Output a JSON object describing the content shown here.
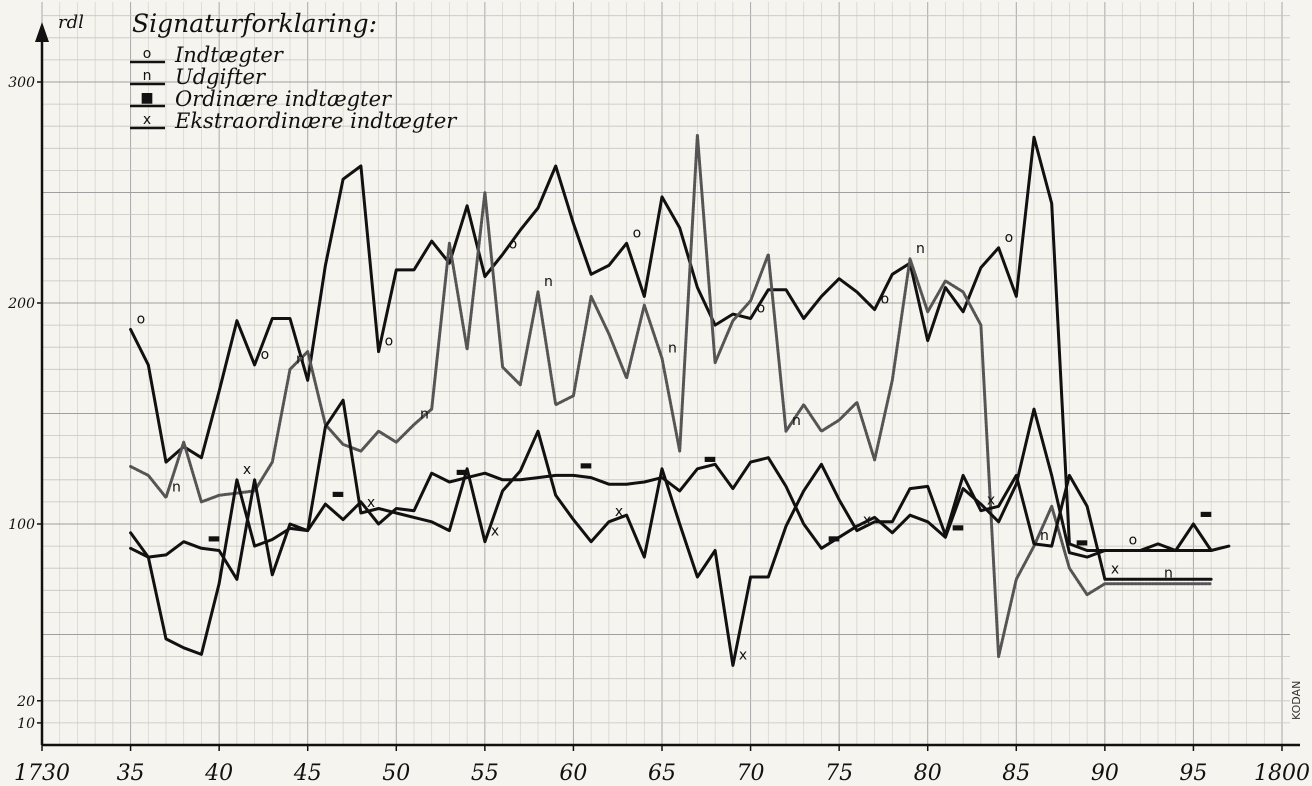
{
  "chart_data": {
    "type": "line",
    "ylabel": "rdl",
    "legend_title": "Signaturforklaring:",
    "legend_placement": "top-left",
    "watermark": "KODAN",
    "xlim": [
      1730,
      1800
    ],
    "ylim": [
      0,
      300
    ],
    "grid": true,
    "x_ticks": [
      {
        "value": 1730,
        "label": "1730"
      },
      {
        "value": 1735,
        "label": "35"
      },
      {
        "value": 1740,
        "label": "40"
      },
      {
        "value": 1745,
        "label": "45"
      },
      {
        "value": 1750,
        "label": "50"
      },
      {
        "value": 1755,
        "label": "55"
      },
      {
        "value": 1760,
        "label": "60"
      },
      {
        "value": 1765,
        "label": "65"
      },
      {
        "value": 1770,
        "label": "70"
      },
      {
        "value": 1775,
        "label": "75"
      },
      {
        "value": 1780,
        "label": "80"
      },
      {
        "value": 1785,
        "label": "85"
      },
      {
        "value": 1790,
        "label": "90"
      },
      {
        "value": 1795,
        "label": "95"
      },
      {
        "value": 1800,
        "label": "1800"
      }
    ],
    "y_ticks": [
      {
        "value": 10,
        "label": "10"
      },
      {
        "value": 20,
        "label": "20"
      },
      {
        "value": 100,
        "label": "100"
      },
      {
        "value": 200,
        "label": "200"
      },
      {
        "value": 300,
        "label": "300"
      }
    ],
    "series": [
      {
        "name": "Indtægter",
        "marker": "o",
        "color": "#111111",
        "style": "solid",
        "x": [
          1735,
          1736,
          1737,
          1738,
          1739,
          1740,
          1741,
          1742,
          1743,
          1744,
          1745,
          1746,
          1747,
          1748,
          1749,
          1750,
          1751,
          1752,
          1753,
          1754,
          1755,
          1756,
          1757,
          1758,
          1759,
          1760,
          1761,
          1762,
          1763,
          1764,
          1765,
          1766,
          1767,
          1768,
          1769,
          1770,
          1771,
          1772,
          1773,
          1774,
          1775,
          1776,
          1777,
          1778,
          1779,
          1780,
          1781,
          1782,
          1783,
          1784,
          1785,
          1786,
          1787,
          1788,
          1789,
          1790,
          1791,
          1792,
          1793,
          1794,
          1795,
          1796
        ],
        "values": [
          188,
          172,
          128,
          135,
          130,
          160,
          192,
          172,
          193,
          193,
          165,
          217,
          256,
          262,
          178,
          215,
          215,
          228,
          218,
          244,
          212,
          222,
          233,
          243,
          262,
          236,
          213,
          217,
          227,
          203,
          248,
          234,
          207,
          190,
          195,
          193,
          206,
          206,
          193,
          203,
          211,
          205,
          197,
          213,
          218,
          183,
          207,
          196,
          216,
          225,
          203,
          275,
          245,
          91,
          88,
          88,
          88,
          88,
          88,
          88,
          88,
          88
        ]
      },
      {
        "name": "Udgifter",
        "marker": "n",
        "color": "#555555",
        "style": "dashed",
        "x": [
          1735,
          1736,
          1737,
          1738,
          1739,
          1740,
          1741,
          1742,
          1743,
          1744,
          1745,
          1746,
          1747,
          1748,
          1749,
          1750,
          1751,
          1752,
          1753,
          1754,
          1755,
          1756,
          1757,
          1758,
          1759,
          1760,
          1761,
          1762,
          1763,
          1764,
          1765,
          1766,
          1767,
          1768,
          1769,
          1770,
          1771,
          1772,
          1773,
          1774,
          1775,
          1776,
          1777,
          1778,
          1779,
          1780,
          1781,
          1782,
          1783,
          1784,
          1785,
          1786,
          1787,
          1788,
          1789,
          1790,
          1791,
          1792,
          1793,
          1794,
          1795,
          1796
        ],
        "values": [
          126,
          122,
          112,
          137,
          110,
          113,
          114,
          115,
          128,
          170,
          178,
          145,
          136,
          133,
          142,
          137,
          145,
          152,
          227,
          179,
          250,
          171,
          163,
          205,
          154,
          158,
          203,
          186,
          166,
          199,
          175,
          133,
          276,
          173,
          192,
          201,
          222,
          142,
          154,
          142,
          147,
          155,
          129,
          165,
          220,
          196,
          210,
          205,
          190,
          40,
          75,
          90,
          108,
          80,
          68,
          73,
          73,
          73,
          73,
          73,
          73,
          73
        ]
      },
      {
        "name": "Ordinære indtægter",
        "marker": "■",
        "color": "#111111",
        "style": "solid",
        "x": [
          1735,
          1736,
          1737,
          1738,
          1739,
          1740,
          1741,
          1742,
          1743,
          1744,
          1745,
          1746,
          1747,
          1748,
          1749,
          1750,
          1751,
          1752,
          1753,
          1754,
          1755,
          1756,
          1757,
          1758,
          1759,
          1760,
          1761,
          1762,
          1763,
          1764,
          1765,
          1766,
          1767,
          1768,
          1769,
          1770,
          1771,
          1772,
          1773,
          1774,
          1775,
          1776,
          1777,
          1778,
          1779,
          1780,
          1781,
          1782,
          1783,
          1784,
          1785,
          1786,
          1787,
          1788,
          1789,
          1790,
          1791,
          1792,
          1793,
          1794,
          1795,
          1796,
          1797
        ],
        "values": [
          89,
          85,
          86,
          92,
          89,
          88,
          75,
          120,
          77,
          100,
          97,
          109,
          102,
          110,
          100,
          107,
          106,
          123,
          119,
          121,
          123,
          120,
          120,
          121,
          122,
          122,
          121,
          118,
          118,
          119,
          121,
          115,
          125,
          127,
          116,
          128,
          130,
          117,
          100,
          89,
          94,
          99,
          103,
          96,
          104,
          101,
          94,
          116,
          109,
          101,
          118,
          152,
          122,
          87,
          85,
          88,
          88,
          88,
          91,
          88,
          100,
          88,
          90
        ]
      },
      {
        "name": "Ekstraordinære indtægter",
        "marker": "x",
        "color": "#111111",
        "style": "solid",
        "x": [
          1735,
          1736,
          1737,
          1738,
          1739,
          1740,
          1741,
          1742,
          1743,
          1744,
          1745,
          1746,
          1747,
          1748,
          1749,
          1750,
          1751,
          1752,
          1753,
          1754,
          1755,
          1756,
          1757,
          1758,
          1759,
          1760,
          1761,
          1762,
          1763,
          1764,
          1765,
          1766,
          1767,
          1768,
          1769,
          1770,
          1771,
          1772,
          1773,
          1774,
          1775,
          1776,
          1777,
          1778,
          1779,
          1780,
          1781,
          1782,
          1783,
          1784,
          1785,
          1786,
          1787,
          1788,
          1789,
          1790,
          1791,
          1792,
          1793,
          1794,
          1795,
          1796
        ],
        "values": [
          96,
          85,
          48,
          44,
          41,
          73,
          120,
          90,
          93,
          98,
          97,
          144,
          156,
          105,
          107,
          105,
          103,
          101,
          97,
          125,
          92,
          115,
          124,
          142,
          113,
          102,
          92,
          101,
          104,
          85,
          125,
          100,
          76,
          88,
          36,
          76,
          76,
          99,
          115,
          127,
          111,
          97,
          101,
          101,
          116,
          117,
          95,
          122,
          106,
          108,
          122,
          91,
          90,
          122,
          108,
          75,
          75,
          75,
          75,
          75,
          75,
          75
        ]
      }
    ]
  }
}
